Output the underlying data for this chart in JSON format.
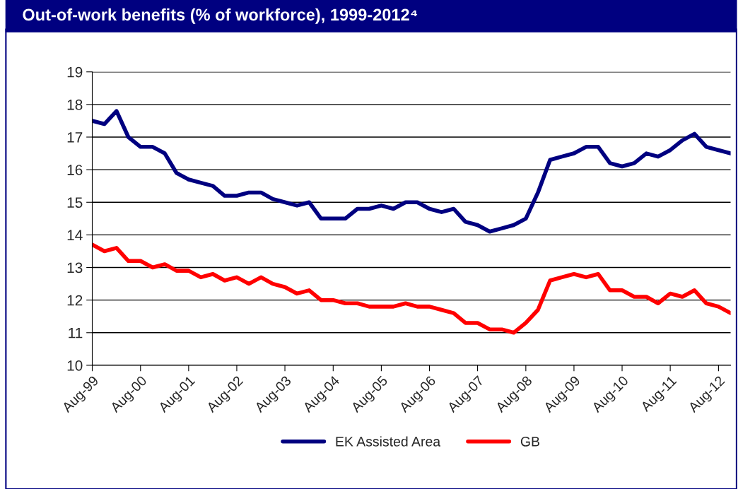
{
  "chart_data": {
    "type": "line",
    "title": "Out-of-work benefits (% of workforce), 1999-2012⁴",
    "x": [
      "1999-08",
      "1999-11",
      "2000-02",
      "2000-05",
      "2000-08",
      "2000-11",
      "2001-02",
      "2001-05",
      "2001-08",
      "2001-11",
      "2002-02",
      "2002-05",
      "2002-08",
      "2002-11",
      "2003-02",
      "2003-05",
      "2003-08",
      "2003-11",
      "2004-02",
      "2004-05",
      "2004-08",
      "2004-11",
      "2005-02",
      "2005-05",
      "2005-08",
      "2005-11",
      "2006-02",
      "2006-05",
      "2006-08",
      "2006-11",
      "2007-02",
      "2007-05",
      "2007-08",
      "2007-11",
      "2008-02",
      "2008-05",
      "2008-08",
      "2008-11",
      "2009-02",
      "2009-05",
      "2009-08",
      "2009-11",
      "2010-02",
      "2010-05",
      "2010-08",
      "2010-11",
      "2011-02",
      "2011-05",
      "2011-08",
      "2011-11",
      "2012-02",
      "2012-05",
      "2012-08",
      "2012-11"
    ],
    "series": [
      {
        "name": "EK Assisted Area",
        "color": "#000080",
        "values": [
          17.5,
          17.4,
          17.8,
          17.0,
          16.7,
          16.7,
          16.5,
          15.9,
          15.7,
          15.6,
          15.5,
          15.2,
          15.2,
          15.3,
          15.3,
          15.1,
          15.0,
          14.9,
          15.0,
          14.5,
          14.5,
          14.5,
          14.8,
          14.8,
          14.9,
          14.8,
          15.0,
          15.0,
          14.8,
          14.7,
          14.8,
          14.4,
          14.3,
          14.1,
          14.2,
          14.3,
          14.5,
          15.3,
          16.3,
          16.4,
          16.5,
          16.7,
          16.7,
          16.2,
          16.1,
          16.2,
          16.5,
          16.4,
          16.6,
          16.9,
          17.1,
          16.7,
          16.6,
          16.5
        ]
      },
      {
        "name": "GB",
        "color": "#ff0000",
        "values": [
          13.7,
          13.5,
          13.6,
          13.2,
          13.2,
          13.0,
          13.1,
          12.9,
          12.9,
          12.7,
          12.8,
          12.6,
          12.7,
          12.5,
          12.7,
          12.5,
          12.4,
          12.2,
          12.3,
          12.0,
          12.0,
          11.9,
          11.9,
          11.8,
          11.8,
          11.8,
          11.9,
          11.8,
          11.8,
          11.7,
          11.6,
          11.3,
          11.3,
          11.1,
          11.1,
          11.0,
          11.3,
          11.7,
          12.6,
          12.7,
          12.8,
          12.7,
          12.8,
          12.3,
          12.3,
          12.1,
          12.1,
          11.9,
          12.2,
          12.1,
          12.3,
          11.9,
          11.8,
          11.6
        ]
      }
    ],
    "xlim": [
      "1999-08",
      "2012-11"
    ],
    "xticks": [
      {
        "value": "1999-08",
        "label": "Aug-99"
      },
      {
        "value": "2000-08",
        "label": "Aug-00"
      },
      {
        "value": "2001-08",
        "label": "Aug-01"
      },
      {
        "value": "2002-08",
        "label": "Aug-02"
      },
      {
        "value": "2003-08",
        "label": "Aug-03"
      },
      {
        "value": "2004-08",
        "label": "Aug-04"
      },
      {
        "value": "2005-08",
        "label": "Aug-05"
      },
      {
        "value": "2006-08",
        "label": "Aug-06"
      },
      {
        "value": "2007-08",
        "label": "Aug-07"
      },
      {
        "value": "2008-08",
        "label": "Aug-08"
      },
      {
        "value": "2009-08",
        "label": "Aug-09"
      },
      {
        "value": "2010-08",
        "label": "Aug-10"
      },
      {
        "value": "2011-08",
        "label": "Aug-11"
      },
      {
        "value": "2012-08",
        "label": "Aug-12"
      }
    ],
    "ylim": [
      10,
      19
    ],
    "yticks": [
      10,
      11,
      12,
      13,
      14,
      15,
      16,
      17,
      18,
      19
    ],
    "grid": "y",
    "legend": "bottom",
    "marker": "none",
    "line_style": "solid"
  }
}
